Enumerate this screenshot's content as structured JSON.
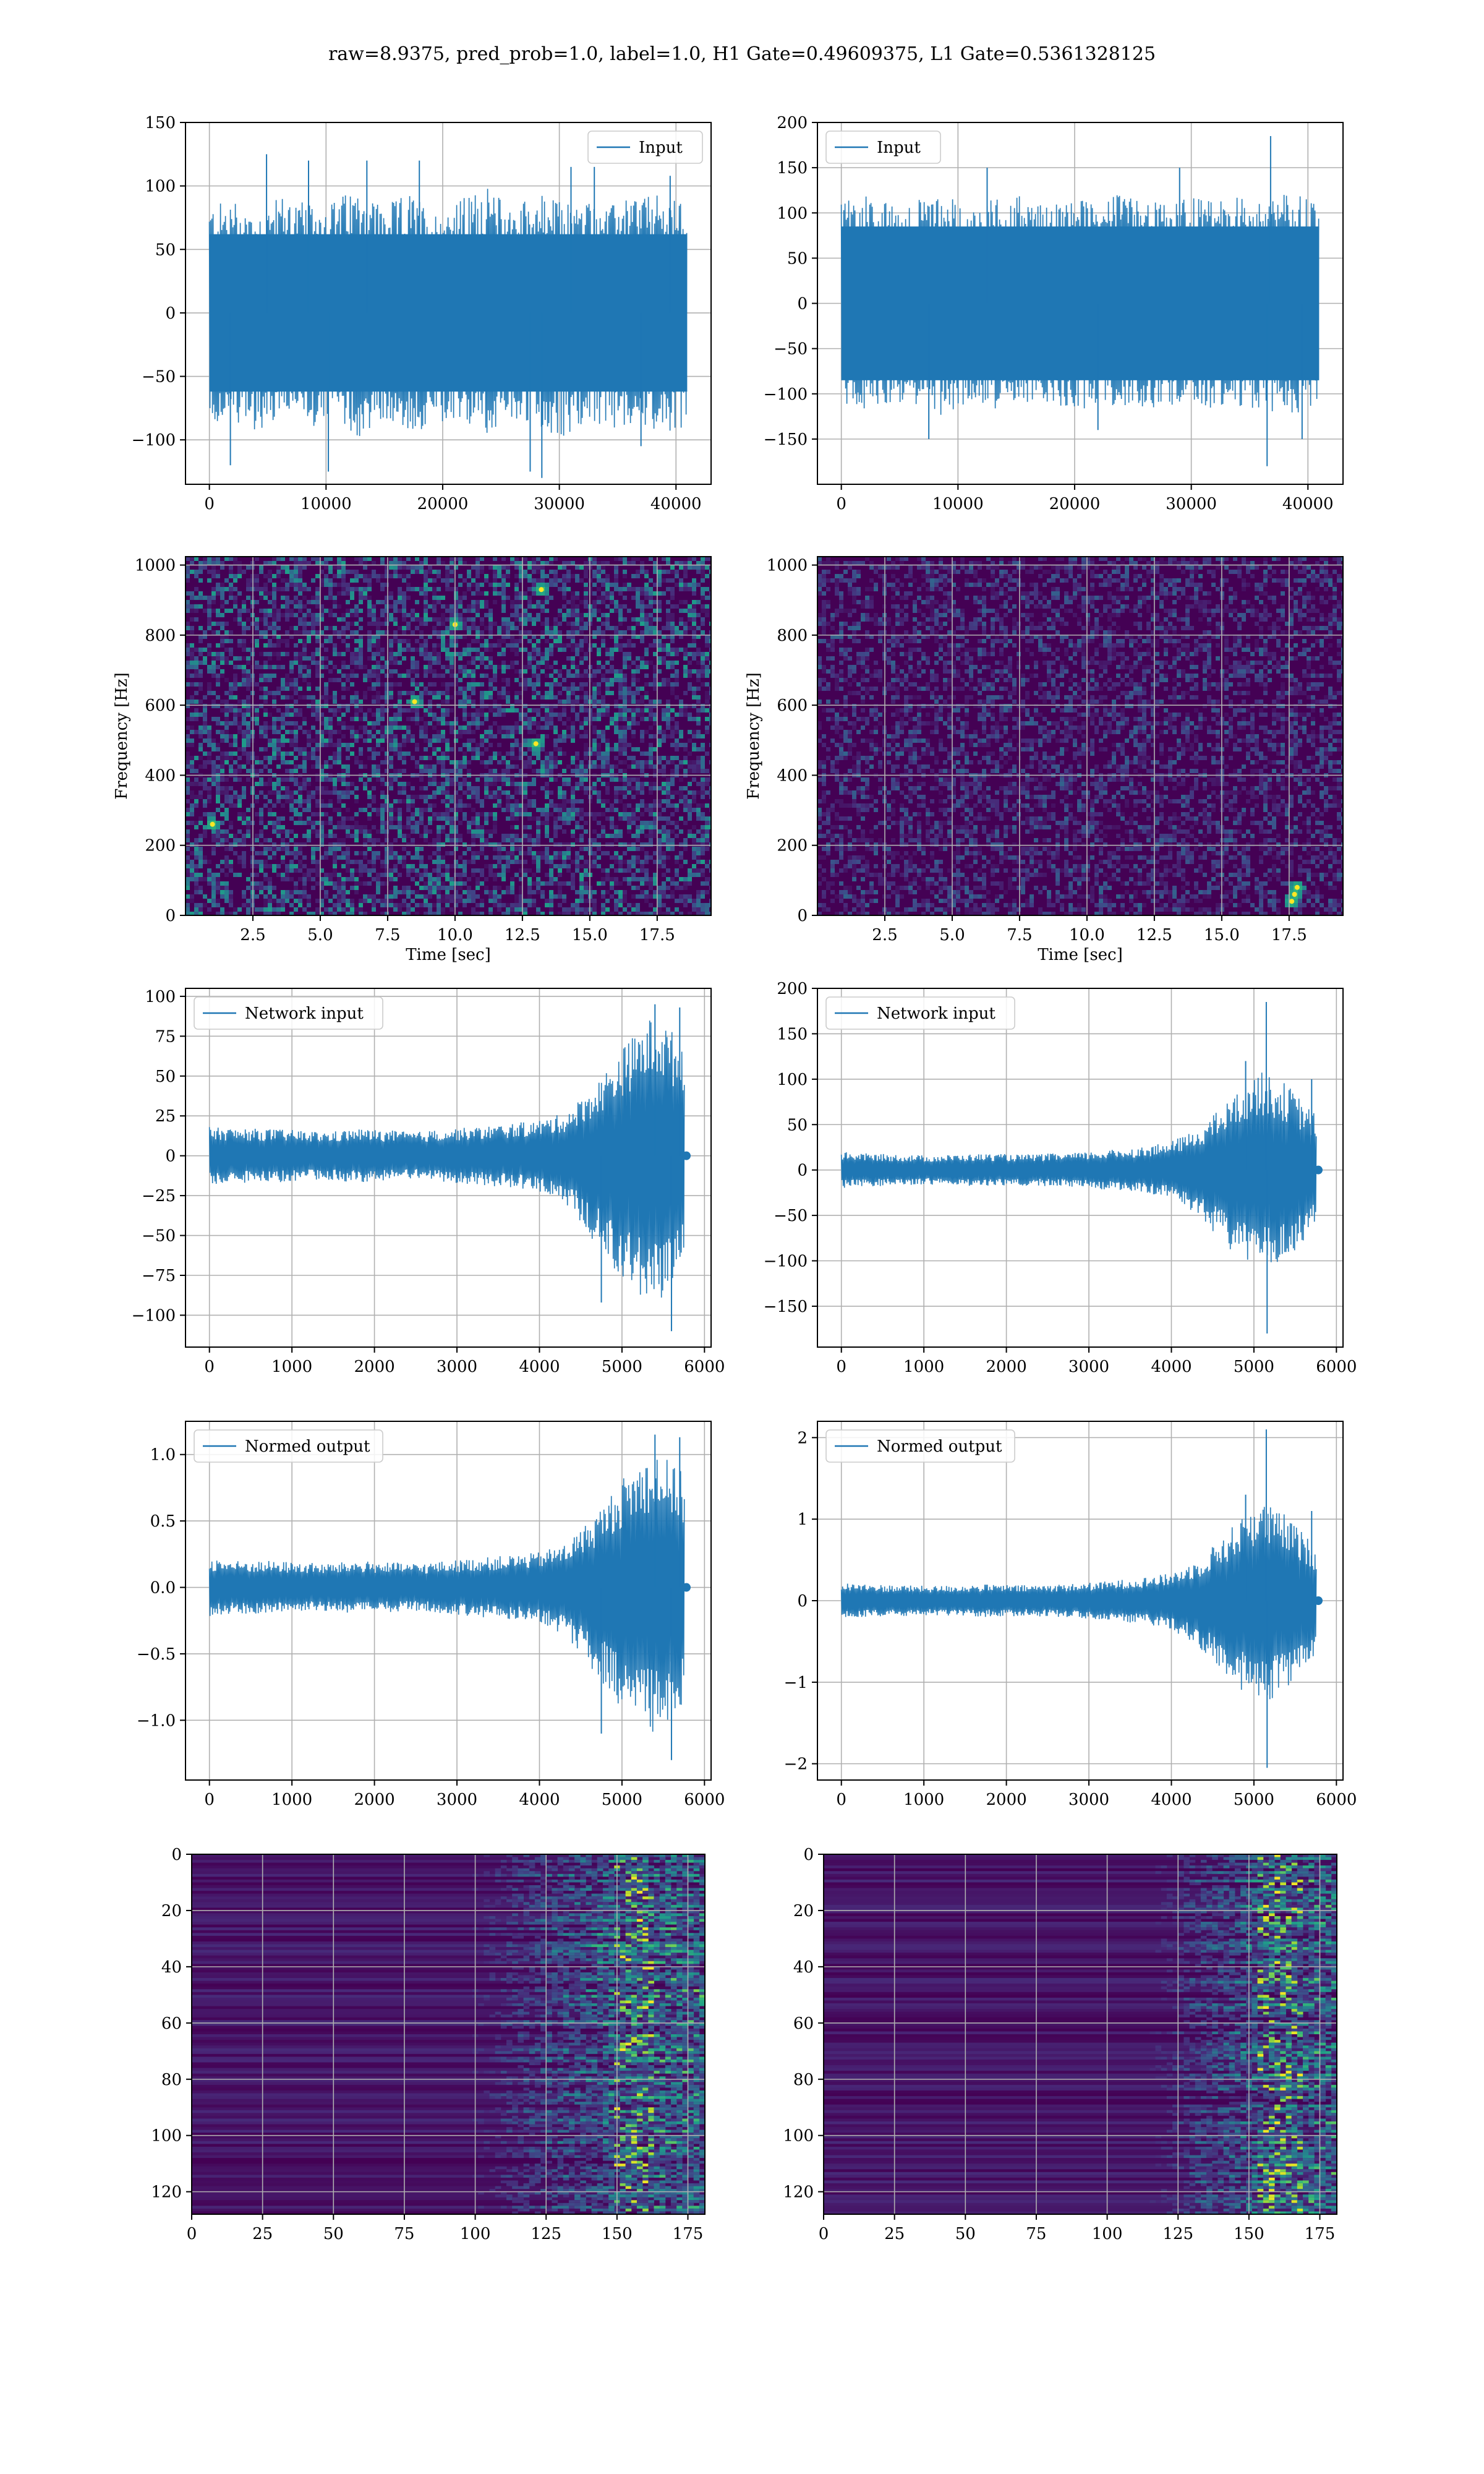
{
  "suptitle": "raw=8.9375, pred_prob=1.0, label=1.0, H1 Gate=0.49609375, L1 Gate=0.5361328125",
  "colors": {
    "line": "#1f77b4",
    "grid": "#b0b0b0",
    "viridis_low": "#440154",
    "viridis_mid": "#21918c",
    "viridis_high": "#fde725"
  },
  "chart_data": [
    {
      "type": "line",
      "id": "h1-input",
      "title": "",
      "xlabel": "",
      "ylabel": "",
      "legend": "Input",
      "legend_loc": "upper right",
      "xlim": [
        -2048,
        43008
      ],
      "ylim": [
        -135,
        150
      ],
      "xticks": [
        0,
        10000,
        20000,
        30000,
        40000
      ],
      "yticks": [
        -100,
        -50,
        0,
        50,
        100,
        150
      ],
      "grid": true,
      "x_range_of_samples": [
        0,
        40960
      ],
      "envelope_upper": [
        85,
        90,
        80,
        95,
        85,
        90,
        100,
        85,
        95,
        80,
        90,
        100,
        85,
        95,
        88,
        90,
        85,
        95,
        92,
        88
      ],
      "envelope_lower": [
        -90,
        -85,
        -95,
        -80,
        -90,
        -85,
        -100,
        -85,
        -95,
        -90,
        -88,
        -95,
        -85,
        -90,
        -100,
        -88,
        -92,
        -85,
        -95,
        -90
      ],
      "core": [
        -62,
        62
      ],
      "spikes": [
        [
          1800,
          -120
        ],
        [
          4900,
          125
        ],
        [
          8500,
          120
        ],
        [
          10200,
          -125
        ],
        [
          13500,
          120
        ],
        [
          18000,
          120
        ],
        [
          27500,
          -125
        ],
        [
          28500,
          -130
        ],
        [
          31000,
          115
        ],
        [
          33000,
          115
        ],
        [
          37000,
          -105
        ],
        [
          39500,
          108
        ]
      ]
    },
    {
      "type": "line",
      "id": "l1-input",
      "title": "",
      "xlabel": "",
      "ylabel": "",
      "legend": "Input",
      "legend_loc": "upper left",
      "xlim": [
        -2048,
        43008
      ],
      "ylim": [
        -200,
        200
      ],
      "xticks": [
        0,
        10000,
        20000,
        30000,
        40000
      ],
      "yticks": [
        -150,
        -100,
        -50,
        0,
        50,
        100,
        150,
        200
      ],
      "grid": true,
      "x_range_of_samples": [
        0,
        40960
      ],
      "envelope_upper": [
        115,
        120,
        110,
        115,
        120,
        110,
        115,
        120,
        110,
        118,
        112,
        120,
        115,
        110,
        118,
        112,
        120,
        115,
        125,
        115
      ],
      "envelope_lower": [
        -115,
        -120,
        -110,
        -115,
        -125,
        -110,
        -118,
        -120,
        -110,
        -115,
        -120,
        -112,
        -118,
        -115,
        -110,
        -120,
        -115,
        -120,
        -125,
        -115
      ],
      "core": [
        -85,
        85
      ],
      "spikes": [
        [
          7500,
          -150
        ],
        [
          12500,
          150
        ],
        [
          22000,
          -140
        ],
        [
          29000,
          150
        ],
        [
          36500,
          -180
        ],
        [
          36800,
          185
        ],
        [
          39500,
          -150
        ]
      ]
    },
    {
      "type": "spectrogram",
      "id": "h1-spectrogram",
      "title": "",
      "xlabel": "Time [sec]",
      "ylabel": "Frequency [Hz]",
      "xlim": [
        0.0,
        19.5
      ],
      "ylim": [
        0,
        1024
      ],
      "xticks": [
        2.5,
        5.0,
        7.5,
        10.0,
        12.5,
        15.0,
        17.5
      ],
      "yticks": [
        0,
        200,
        400,
        600,
        800,
        1000
      ],
      "grid": true,
      "intensity_level": 0.35,
      "hotspots": [
        [
          13.2,
          930
        ],
        [
          8.5,
          610
        ],
        [
          1.0,
          260
        ],
        [
          13.0,
          490
        ],
        [
          10.0,
          830
        ]
      ]
    },
    {
      "type": "spectrogram",
      "id": "l1-spectrogram",
      "title": "",
      "xlabel": "Time [sec]",
      "ylabel": "Frequency [Hz]",
      "xlim": [
        0.0,
        19.5
      ],
      "ylim": [
        0,
        1024
      ],
      "xticks": [
        2.5,
        5.0,
        7.5,
        10.0,
        12.5,
        15.0,
        17.5
      ],
      "yticks": [
        0,
        200,
        400,
        600,
        800,
        1000
      ],
      "grid": true,
      "intensity_level": 0.2,
      "hotspots": [
        [
          17.7,
          60
        ],
        [
          17.8,
          80
        ],
        [
          17.6,
          40
        ]
      ]
    },
    {
      "type": "line",
      "id": "h1-network-input",
      "title": "",
      "xlabel": "",
      "ylabel": "",
      "legend": "Network input",
      "legend_loc": "upper left",
      "xlim": [
        -290,
        6080
      ],
      "ylim": [
        -120,
        105
      ],
      "xticks": [
        0,
        1000,
        2000,
        3000,
        4000,
        5000,
        6000
      ],
      "yticks": [
        -100,
        -75,
        -50,
        -25,
        0,
        25,
        50,
        75,
        100
      ],
      "grid": true,
      "x_range_of_samples": [
        0,
        5760
      ],
      "envelope_upper": [
        18,
        17,
        17,
        16,
        15,
        17,
        16,
        15,
        17,
        18,
        20,
        22,
        27,
        45,
        70,
        90,
        70
      ],
      "envelope_lower": [
        -18,
        -17,
        -17,
        -16,
        -15,
        -17,
        -16,
        -15,
        -17,
        -18,
        -20,
        -22,
        -30,
        -55,
        -80,
        -95,
        -70
      ],
      "spikes": [
        [
          4750,
          -92
        ],
        [
          5400,
          95
        ],
        [
          5600,
          -110
        ],
        [
          5700,
          93
        ]
      ],
      "tail_marker": [
        5780,
        0
      ]
    },
    {
      "type": "line",
      "id": "l1-network-input",
      "title": "",
      "xlabel": "",
      "ylabel": "",
      "legend": "Network input",
      "legend_loc": "upper left",
      "xlim": [
        -290,
        6080
      ],
      "ylim": [
        -195,
        200
      ],
      "xticks": [
        0,
        1000,
        2000,
        3000,
        4000,
        5000,
        6000
      ],
      "yticks": [
        -150,
        -100,
        -50,
        0,
        50,
        100,
        150,
        200
      ],
      "grid": true,
      "x_range_of_samples": [
        0,
        5760
      ],
      "envelope_upper": [
        20,
        18,
        17,
        16,
        17,
        18,
        17,
        18,
        19,
        22,
        25,
        30,
        45,
        75,
        110,
        95,
        60
      ],
      "envelope_lower": [
        -20,
        -18,
        -17,
        -16,
        -17,
        -18,
        -17,
        -18,
        -19,
        -22,
        -25,
        -30,
        -50,
        -85,
        -115,
        -100,
        -60
      ],
      "spikes": [
        [
          5150,
          185
        ],
        [
          5160,
          -180
        ],
        [
          4900,
          120
        ],
        [
          5700,
          100
        ]
      ],
      "tail_marker": [
        5780,
        0
      ]
    },
    {
      "type": "line",
      "id": "h1-normed-output",
      "title": "",
      "xlabel": "",
      "ylabel": "",
      "legend": "Normed output",
      "legend_loc": "upper left",
      "xlim": [
        -290,
        6080
      ],
      "ylim": [
        -1.45,
        1.25
      ],
      "xticks": [
        0,
        1000,
        2000,
        3000,
        4000,
        5000,
        6000
      ],
      "yticks": [
        -1.0,
        -0.5,
        0.0,
        0.5,
        1.0
      ],
      "grid": true,
      "x_range_of_samples": [
        0,
        5760
      ],
      "envelope_upper": [
        0.22,
        0.2,
        0.2,
        0.19,
        0.18,
        0.2,
        0.19,
        0.18,
        0.2,
        0.22,
        0.24,
        0.26,
        0.33,
        0.55,
        0.85,
        1.05,
        0.85
      ],
      "envelope_lower": [
        -0.22,
        -0.2,
        -0.2,
        -0.19,
        -0.18,
        -0.2,
        -0.19,
        -0.18,
        -0.2,
        -0.22,
        -0.24,
        -0.26,
        -0.36,
        -0.65,
        -0.95,
        -1.15,
        -0.85
      ],
      "spikes": [
        [
          4750,
          -1.1
        ],
        [
          5400,
          1.15
        ],
        [
          5600,
          -1.3
        ],
        [
          5700,
          1.13
        ]
      ],
      "tail_marker": [
        5780,
        0.0
      ]
    },
    {
      "type": "line",
      "id": "l1-normed-output",
      "title": "",
      "xlabel": "",
      "ylabel": "",
      "legend": "Normed output",
      "legend_loc": "upper left",
      "xlim": [
        -290,
        6080
      ],
      "ylim": [
        -2.2,
        2.2
      ],
      "xticks": [
        0,
        1000,
        2000,
        3000,
        4000,
        5000,
        6000
      ],
      "yticks": [
        -2,
        -1,
        0,
        1,
        2
      ],
      "grid": true,
      "x_range_of_samples": [
        0,
        5760
      ],
      "envelope_upper": [
        0.22,
        0.2,
        0.19,
        0.18,
        0.19,
        0.2,
        0.19,
        0.2,
        0.21,
        0.24,
        0.28,
        0.33,
        0.5,
        0.85,
        1.25,
        1.05,
        0.65
      ],
      "envelope_lower": [
        -0.22,
        -0.2,
        -0.19,
        -0.18,
        -0.19,
        -0.2,
        -0.19,
        -0.2,
        -0.21,
        -0.24,
        -0.28,
        -0.33,
        -0.55,
        -0.95,
        -1.3,
        -1.1,
        -0.65
      ],
      "spikes": [
        [
          5150,
          2.1
        ],
        [
          5160,
          -2.05
        ],
        [
          4900,
          1.3
        ],
        [
          5700,
          1.1
        ]
      ],
      "tail_marker": [
        5780,
        0.0
      ]
    },
    {
      "type": "heatmap",
      "id": "h1-feature-map",
      "title": "",
      "xlabel": "",
      "ylabel": "",
      "xlim": [
        0,
        181
      ],
      "ylim": [
        128,
        0
      ],
      "xticks": [
        0,
        25,
        50,
        75,
        100,
        125,
        150,
        175
      ],
      "yticks": [
        0,
        20,
        40,
        60,
        80,
        100,
        120
      ],
      "grid": true,
      "rows": 128,
      "cols": 181,
      "activity_onset_col": 100,
      "peak_col": 155
    },
    {
      "type": "heatmap",
      "id": "l1-feature-map",
      "title": "",
      "xlabel": "",
      "ylabel": "",
      "xlim": [
        0,
        181
      ],
      "ylim": [
        128,
        0
      ],
      "xticks": [
        0,
        25,
        50,
        75,
        100,
        125,
        150,
        175
      ],
      "yticks": [
        0,
        20,
        40,
        60,
        80,
        100,
        120
      ],
      "grid": true,
      "rows": 128,
      "cols": 181,
      "activity_onset_col": 120,
      "peak_col": 160
    }
  ]
}
